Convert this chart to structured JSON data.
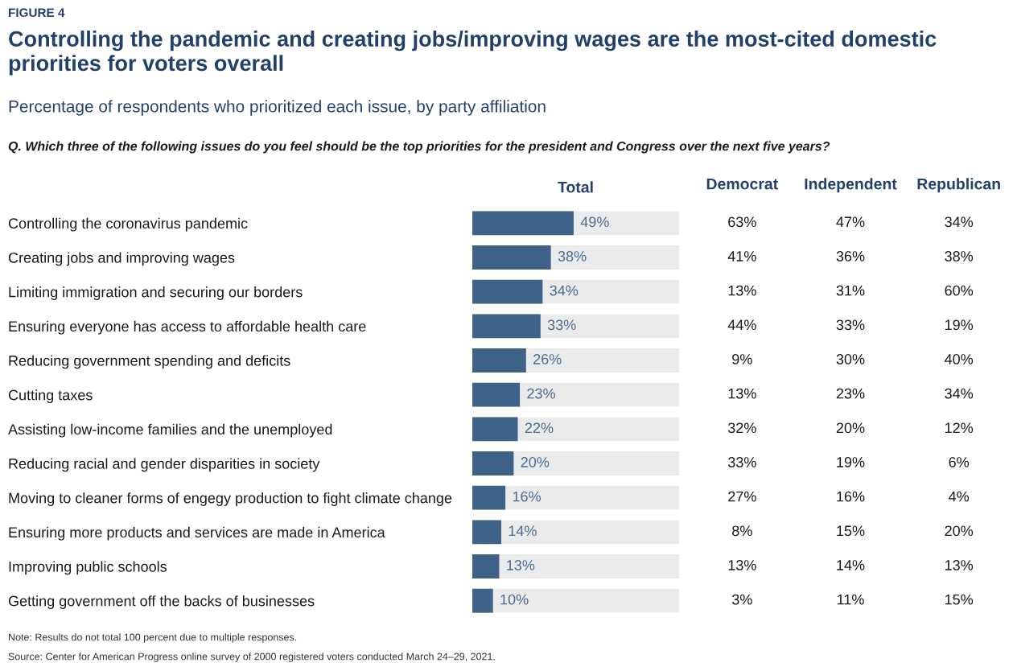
{
  "chart_data": [
    {
      "type": "bar",
      "orientation": "horizontal",
      "title": "Controlling the pandemic and creating jobs/improving wages are the most-cited domestic priorities for voters overall",
      "subtitle": "Percentage of respondents who prioritized each issue, by party affiliation",
      "xlabel": "Total",
      "annotations": [
        "FIGURE 4",
        "Q. Which three of the following issues do you feel should be the top priorities for the president and Congress over the next five years?",
        "Note: Results do not total 100 percent due to multiple responses.",
        "Source: Center for American Progress online survey of 2000 registered voters conducted March 24–29, 2021."
      ],
      "categories": [
        "Controlling the coronavirus pandemic",
        "Creating jobs and improving wages",
        "Limiting immigration and securing our borders",
        "Ensuring everyone has access to affordable health care",
        "Reducing government spending and deficits",
        "Cutting taxes",
        "Assisting low-income families and the unemployed",
        "Reducing racial and gender disparities in society",
        "Moving to cleaner forms of engegy production to fight climate change",
        "Ensuring more products and services are made in America",
        "Improving public schools",
        "Getting government off the backs of businesses"
      ],
      "values": [
        49,
        38,
        34,
        33,
        26,
        23,
        22,
        20,
        16,
        14,
        13,
        10
      ],
      "value_labels": [
        "49%",
        "38%",
        "34%",
        "33%",
        "26%",
        "23%",
        "22%",
        "20%",
        "16%",
        "14%",
        "13%",
        "10%"
      ],
      "color": "#3f6289",
      "xlim": [
        0,
        100
      ],
      "tick_labels": "y",
      "bands": [
        {
          "axis": "x",
          "from": 0,
          "to": 100,
          "color": "#ebebeb"
        }
      ]
    },
    {
      "type": "heatmap",
      "categories": [
        "Democrat",
        "Independent",
        "Republican"
      ],
      "y_categories": [
        "Controlling the coronavirus pandemic",
        "Creating jobs and improving wages",
        "Limiting immigration and securing our borders",
        "Ensuring everyone has access to affordable health care",
        "Reducing government spending and deficits",
        "Cutting taxes",
        "Assisting low-income families and the unemployed",
        "Reducing racial and gender disparities in society",
        "Moving to cleaner forms of engegy production to fight climate change",
        "Ensuring more products and services are made in America",
        "Improving public schools",
        "Getting government off the backs of businesses"
      ],
      "cells": [
        [
          63,
          47,
          34
        ],
        [
          41,
          36,
          38
        ],
        [
          13,
          31,
          60
        ],
        [
          44,
          33,
          19
        ],
        [
          9,
          30,
          40
        ],
        [
          13,
          23,
          34
        ],
        [
          32,
          20,
          12
        ],
        [
          33,
          19,
          6
        ],
        [
          27,
          16,
          4
        ],
        [
          8,
          15,
          20
        ],
        [
          13,
          14,
          13
        ],
        [
          3,
          11,
          15
        ]
      ],
      "cell_labels": [
        [
          "63%",
          "47%",
          "34%"
        ],
        [
          "41%",
          "36%",
          "38%"
        ],
        [
          "13%",
          "31%",
          "60%"
        ],
        [
          "44%",
          "33%",
          "19%"
        ],
        [
          "9%",
          "30%",
          "40%"
        ],
        [
          "13%",
          "23%",
          "34%"
        ],
        [
          "32%",
          "20%",
          "12%"
        ],
        [
          "33%",
          "19%",
          "6%"
        ],
        [
          "27%",
          "16%",
          "4%"
        ],
        [
          "8%",
          "15%",
          "20%"
        ],
        [
          "13%",
          "14%",
          "13%"
        ],
        [
          "3%",
          "11%",
          "15%"
        ]
      ],
      "tick_labels": "x"
    }
  ]
}
